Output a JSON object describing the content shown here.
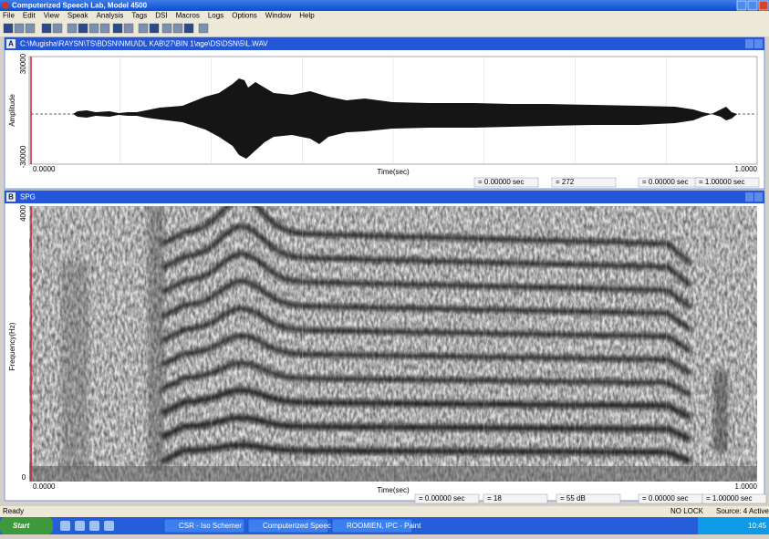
{
  "app_title": "Computerized Speech Lab, Model 4500",
  "menu": [
    "File",
    "Edit",
    "View",
    "Speak",
    "Analysis",
    "Tags",
    "DSI",
    "Macros",
    "Logs",
    "Options",
    "Window",
    "Help"
  ],
  "window_a": {
    "letter": "A",
    "title": "C:\\Mugisha\\RAYSN\\TS\\BDSN\\NMU\\DL KAB\\27\\BIN 1\\age\\DS\\DSN\\5\\L.WAV",
    "y_label": "Amplitude",
    "y_top": "30000",
    "y_bottom": "-30000",
    "x_start": "0.0000",
    "x_label": "Time(sec)",
    "x_end": "1.0000",
    "status": [
      "= 0.00000 sec",
      "= 272",
      "= 0.00000 sec",
      "= 1.00000 sec"
    ]
  },
  "window_b": {
    "letter": "B",
    "title": "SPG",
    "y_label": "Frequency(Hz)",
    "y_top": "4000",
    "y_bottom": "0",
    "x_start": "0.0000",
    "x_label": "Time(sec)",
    "x_end": "1.0000",
    "status": [
      "= 0.00000 sec",
      "= 18",
      "= 55 dB",
      "= 0.00000 sec",
      "= 1.00000 sec"
    ]
  },
  "status_bar": {
    "left": "Ready",
    "right": [
      "NO LOCK",
      "Source: 4 Active"
    ]
  },
  "taskbar": {
    "start": "Start",
    "items": [
      "CSR - Iso Schemer",
      "Computerized Speec...",
      "ROOMIEN, IPC - Paint"
    ],
    "clock": "10:45"
  }
}
